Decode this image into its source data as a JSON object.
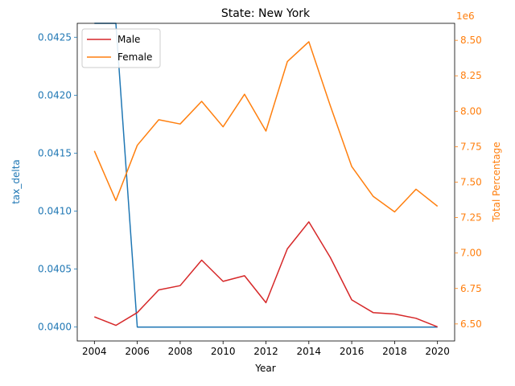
{
  "chart_data": {
    "type": "line",
    "title": "State: New York",
    "xlabel": "Year",
    "ylabel_left": "tax_delta",
    "ylabel_right": "Total Percentage",
    "right_offset_label": "1e6",
    "x": [
      2004,
      2005,
      2006,
      2007,
      2008,
      2009,
      2010,
      2011,
      2012,
      2013,
      2014,
      2015,
      2016,
      2017,
      2018,
      2019,
      2020
    ],
    "x_ticks": [
      "2004",
      "2006",
      "2008",
      "2010",
      "2012",
      "2014",
      "2016",
      "2018",
      "2020"
    ],
    "left_ticks": [
      "0.0400",
      "0.0405",
      "0.0410",
      "0.0415",
      "0.0420",
      "0.0425"
    ],
    "right_ticks": [
      "6.50",
      "6.75",
      "7.00",
      "7.25",
      "7.50",
      "7.75",
      "8.00",
      "8.25",
      "8.50"
    ],
    "xlim": [
      2003.2,
      2020.8
    ],
    "ylim_left": [
      0.03988,
      0.04262
    ],
    "ylim_right": [
      6.38,
      8.62
    ],
    "grid": false,
    "legend_position": "upper left",
    "series": [
      {
        "name": "",
        "axis": "left",
        "color": "#1f77b4",
        "values": [
          0.04262,
          0.04262,
          0.04,
          0.04,
          0.04,
          0.04,
          0.04,
          0.04,
          0.04,
          0.04,
          0.04,
          0.04,
          0.04,
          0.04,
          0.04,
          0.04,
          0.04
        ]
      },
      {
        "name": "Male",
        "axis": "right",
        "color": "#d62728",
        "values": [
          6.55,
          6.49,
          6.58,
          6.74,
          6.77,
          6.95,
          6.8,
          6.84,
          6.65,
          7.03,
          7.22,
          6.97,
          6.67,
          6.58,
          6.57,
          6.54,
          6.48
        ]
      },
      {
        "name": "Female",
        "axis": "right",
        "color": "#ff7f0e",
        "values": [
          7.72,
          7.37,
          7.76,
          7.94,
          7.91,
          8.07,
          7.89,
          8.12,
          7.86,
          8.35,
          8.49,
          8.04,
          7.61,
          7.4,
          7.29,
          7.45,
          7.33
        ]
      }
    ],
    "colors": {
      "left_axis": "#1f77b4",
      "right_axis": "#ff7f0e",
      "axes": "#000000"
    }
  }
}
